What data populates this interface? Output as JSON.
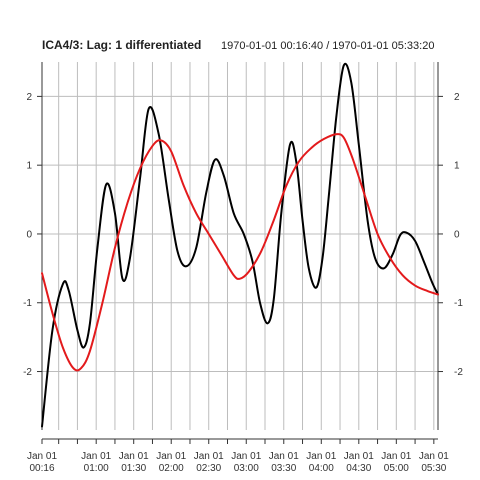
{
  "chart_data": {
    "type": "line",
    "title": "ICA4/3:  Lag: 1 differentiated",
    "subtitle": "1970-01-01 00:16:40 / 1970-01-01 05:33:20",
    "xlabel": "",
    "ylabel": "",
    "x_unit": "time (hh:mm on 1970-01-01)",
    "xlim": [
      "00:16:40",
      "05:33:20"
    ],
    "ylim": [
      -2.85,
      2.5
    ],
    "grid": true,
    "legend": "none",
    "x_ticks": [
      {
        "time": "00:16:40",
        "line1": "Jan 01",
        "line2": "00:16"
      },
      {
        "time": "01:00:00",
        "line1": "Jan 01",
        "line2": "01:00"
      },
      {
        "time": "01:30:00",
        "line1": "Jan 01",
        "line2": "01:30"
      },
      {
        "time": "02:00:00",
        "line1": "Jan 01",
        "line2": "02:00"
      },
      {
        "time": "02:30:00",
        "line1": "Jan 01",
        "line2": "02:30"
      },
      {
        "time": "03:00:00",
        "line1": "Jan 01",
        "line2": "03:00"
      },
      {
        "time": "03:30:00",
        "line1": "Jan 01",
        "line2": "03:30"
      },
      {
        "time": "04:00:00",
        "line1": "Jan 01",
        "line2": "04:00"
      },
      {
        "time": "04:30:00",
        "line1": "Jan 01",
        "line2": "04:30"
      },
      {
        "time": "05:00:00",
        "line1": "Jan 01",
        "line2": "05:00"
      },
      {
        "time": "05:30:00",
        "line1": "Jan 01",
        "line2": "05:30"
      }
    ],
    "x_minor_ticks": [
      "00:30:00",
      "00:45:00",
      "01:15:00",
      "01:45:00",
      "02:15:00",
      "02:45:00",
      "03:15:00",
      "03:45:00",
      "04:15:00",
      "04:45:00",
      "05:15:00"
    ],
    "y_ticks": [
      -2,
      -1,
      0,
      1,
      2
    ],
    "series": [
      {
        "color": "#000000",
        "points": [
          {
            "x": "00:16:40",
            "y": -2.8
          },
          {
            "x": "00:25:00",
            "y": -1.4
          },
          {
            "x": "00:33:20",
            "y": -0.73
          },
          {
            "x": "00:38:00",
            "y": -0.82
          },
          {
            "x": "00:45:00",
            "y": -1.4
          },
          {
            "x": "00:50:00",
            "y": -1.65
          },
          {
            "x": "00:55:00",
            "y": -1.3
          },
          {
            "x": "01:01:00",
            "y": -0.2
          },
          {
            "x": "01:08:00",
            "y": 0.72
          },
          {
            "x": "01:15:00",
            "y": 0.3
          },
          {
            "x": "01:21:00",
            "y": -0.65
          },
          {
            "x": "01:27:00",
            "y": -0.35
          },
          {
            "x": "01:35:00",
            "y": 0.8
          },
          {
            "x": "01:42:00",
            "y": 1.82
          },
          {
            "x": "01:50:00",
            "y": 1.45
          },
          {
            "x": "01:58:00",
            "y": 0.5
          },
          {
            "x": "02:05:00",
            "y": -0.25
          },
          {
            "x": "02:12:00",
            "y": -0.47
          },
          {
            "x": "02:20:00",
            "y": -0.2
          },
          {
            "x": "02:28:00",
            "y": 0.6
          },
          {
            "x": "02:35:00",
            "y": 1.08
          },
          {
            "x": "02:42:00",
            "y": 0.85
          },
          {
            "x": "02:50:00",
            "y": 0.3
          },
          {
            "x": "02:58:00",
            "y": 0.0
          },
          {
            "x": "03:05:00",
            "y": -0.4
          },
          {
            "x": "03:11:00",
            "y": -1.0
          },
          {
            "x": "03:17:00",
            "y": -1.3
          },
          {
            "x": "03:22:00",
            "y": -0.95
          },
          {
            "x": "03:28:00",
            "y": 0.3
          },
          {
            "x": "03:35:00",
            "y": 1.3
          },
          {
            "x": "03:40:00",
            "y": 1.05
          },
          {
            "x": "03:45:00",
            "y": 0.2
          },
          {
            "x": "03:50:00",
            "y": -0.5
          },
          {
            "x": "03:56:00",
            "y": -0.78
          },
          {
            "x": "04:01:00",
            "y": -0.35
          },
          {
            "x": "04:06:00",
            "y": 0.55
          },
          {
            "x": "04:12:00",
            "y": 1.7
          },
          {
            "x": "04:18:00",
            "y": 2.45
          },
          {
            "x": "04:24:00",
            "y": 2.2
          },
          {
            "x": "04:30:00",
            "y": 1.3
          },
          {
            "x": "04:37:00",
            "y": 0.2
          },
          {
            "x": "04:43:00",
            "y": -0.35
          },
          {
            "x": "04:50:00",
            "y": -0.5
          },
          {
            "x": "04:57:00",
            "y": -0.3
          },
          {
            "x": "05:03:00",
            "y": -0.02
          },
          {
            "x": "05:08:00",
            "y": 0.02
          },
          {
            "x": "05:15:00",
            "y": -0.1
          },
          {
            "x": "05:22:00",
            "y": -0.4
          },
          {
            "x": "05:29:00",
            "y": -0.72
          },
          {
            "x": "05:33:20",
            "y": -0.88
          }
        ]
      },
      {
        "color": "#e31a1c",
        "points": [
          {
            "x": "00:16:40",
            "y": -0.57
          },
          {
            "x": "00:25:00",
            "y": -1.15
          },
          {
            "x": "00:33:20",
            "y": -1.65
          },
          {
            "x": "00:41:40",
            "y": -1.95
          },
          {
            "x": "00:48:00",
            "y": -1.95
          },
          {
            "x": "00:55:00",
            "y": -1.7
          },
          {
            "x": "01:05:00",
            "y": -1.0
          },
          {
            "x": "01:15:00",
            "y": -0.2
          },
          {
            "x": "01:25:00",
            "y": 0.45
          },
          {
            "x": "01:35:00",
            "y": 0.95
          },
          {
            "x": "01:45:00",
            "y": 1.28
          },
          {
            "x": "01:52:00",
            "y": 1.36
          },
          {
            "x": "02:00:00",
            "y": 1.2
          },
          {
            "x": "02:10:00",
            "y": 0.7
          },
          {
            "x": "02:20:00",
            "y": 0.3
          },
          {
            "x": "02:30:00",
            "y": 0.0
          },
          {
            "x": "02:40:00",
            "y": -0.3
          },
          {
            "x": "02:50:00",
            "y": -0.6
          },
          {
            "x": "02:55:00",
            "y": -0.65
          },
          {
            "x": "03:02:00",
            "y": -0.55
          },
          {
            "x": "03:12:00",
            "y": -0.25
          },
          {
            "x": "03:22:00",
            "y": 0.2
          },
          {
            "x": "03:32:00",
            "y": 0.7
          },
          {
            "x": "03:42:00",
            "y": 1.05
          },
          {
            "x": "03:52:00",
            "y": 1.25
          },
          {
            "x": "04:02:00",
            "y": 1.38
          },
          {
            "x": "04:12:00",
            "y": 1.45
          },
          {
            "x": "04:18:00",
            "y": 1.4
          },
          {
            "x": "04:25:00",
            "y": 1.1
          },
          {
            "x": "04:35:00",
            "y": 0.55
          },
          {
            "x": "04:45:00",
            "y": 0.0
          },
          {
            "x": "04:55:00",
            "y": -0.35
          },
          {
            "x": "05:05:00",
            "y": -0.6
          },
          {
            "x": "05:15:00",
            "y": -0.75
          },
          {
            "x": "05:25:00",
            "y": -0.83
          },
          {
            "x": "05:33:20",
            "y": -0.88
          }
        ]
      }
    ]
  }
}
